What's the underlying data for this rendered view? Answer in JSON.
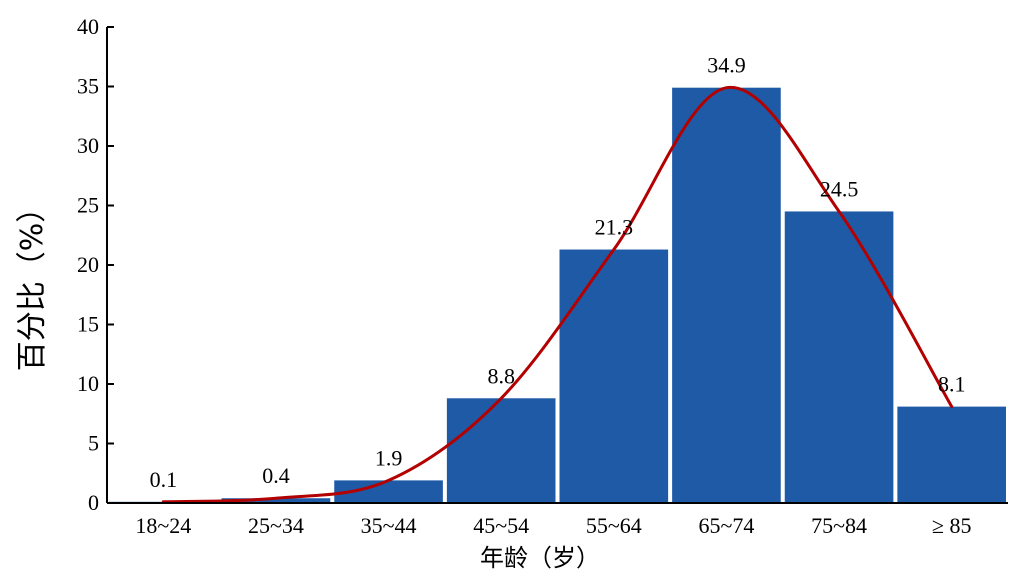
{
  "chart_data": {
    "type": "bar",
    "categories": [
      "18~24",
      "25~34",
      "35~44",
      "45~54",
      "55~64",
      "65~74",
      "75~84",
      "≥ 85"
    ],
    "values": [
      0.1,
      0.4,
      1.9,
      8.8,
      21.3,
      34.9,
      24.5,
      8.1
    ],
    "data_labels": [
      "0.1",
      "0.4",
      "1.9",
      "8.8",
      "21.3",
      "34.9",
      "24.5",
      "8.1"
    ],
    "xlabel": "年龄（岁）",
    "ylabel": "百分比（%）",
    "ylim": [
      0,
      40
    ],
    "yticks": [
      0,
      5,
      10,
      15,
      20,
      25,
      30,
      35,
      40
    ],
    "grid": false,
    "overlay_line": "smooth curve through bar tops",
    "colors": {
      "bar": "#1f5aa6",
      "line": "#b30000",
      "axis": "#000000"
    }
  }
}
